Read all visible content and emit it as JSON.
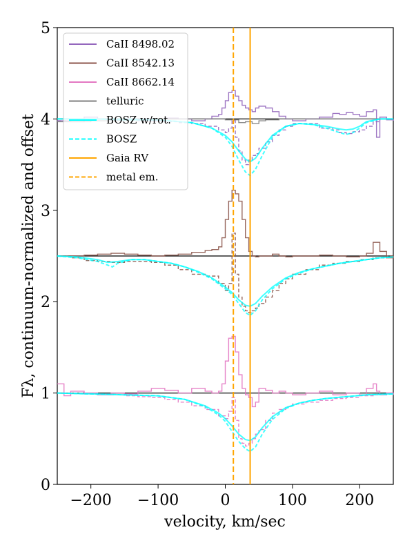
{
  "chart_data": {
    "type": "line",
    "xlabel": "velocity, km/sec",
    "ylabel": "Fλ, continuum-normalized and offset",
    "xlim": [
      -250,
      250
    ],
    "ylim": [
      0,
      5
    ],
    "xticks": [
      -200,
      -100,
      0,
      100,
      200
    ],
    "xtick_labels": [
      "−200",
      "−100",
      "0",
      "100",
      "200"
    ],
    "yticks": [
      0,
      1,
      2,
      3,
      4,
      5
    ],
    "ytick_labels": [
      "0",
      "1",
      "2",
      "3",
      "4",
      "5"
    ],
    "legend_position": "upper-left",
    "legend": [
      {
        "label": "CaII 8498.02",
        "color": "#9467bd",
        "style": "solid"
      },
      {
        "label": "CaII 8542.13",
        "color": "#8c564b",
        "style": "solid"
      },
      {
        "label": "CaII 8662.14",
        "color": "#e377c2",
        "style": "solid"
      },
      {
        "label": "telluric",
        "color": "#7f7f7f",
        "style": "solid"
      },
      {
        "label": "BOSZ w/rot.",
        "color": "#00ffff",
        "style": "solid"
      },
      {
        "label": "BOSZ",
        "color": "#00ffff",
        "style": "dashed"
      },
      {
        "label": "Gaia RV",
        "color": "#ffa500",
        "style": "solid"
      },
      {
        "label": "metal em.",
        "color": "#ffa500",
        "style": "dashed"
      }
    ],
    "vlines": [
      {
        "name": "Gaia RV",
        "x": 37,
        "color": "#ffa500",
        "style": "solid"
      },
      {
        "name": "metal em.",
        "x": 12,
        "color": "#ffa500",
        "style": "dashed"
      }
    ],
    "offsets": [
      4,
      2.5,
      1
    ],
    "series": [
      {
        "name": "CaII 8498.02",
        "color": "#9467bd",
        "step": true,
        "offset": 4,
        "x": [
          -250,
          -230,
          -210,
          -190,
          -170,
          -150,
          -130,
          -110,
          -90,
          -70,
          -50,
          -30,
          -20,
          -10,
          -5,
          0,
          5,
          10,
          15,
          20,
          25,
          30,
          35,
          40,
          45,
          50,
          60,
          70,
          80,
          90,
          100,
          120,
          140,
          160,
          170,
          180,
          190,
          200,
          210,
          220,
          225,
          230,
          240,
          250
        ],
        "y": [
          3.98,
          3.97,
          4.02,
          4.0,
          3.99,
          4.0,
          4.0,
          3.98,
          4.01,
          4.0,
          3.98,
          4.0,
          4.03,
          4.05,
          4.12,
          4.2,
          4.29,
          4.31,
          4.25,
          4.2,
          4.15,
          4.12,
          4.1,
          4.08,
          4.12,
          4.14,
          4.12,
          4.08,
          4.03,
          4.0,
          3.98,
          4.0,
          4.02,
          4.06,
          4.05,
          4.07,
          4.05,
          4.03,
          4.08,
          4.1,
          3.8,
          4.02,
          3.99,
          3.98
        ]
      },
      {
        "name": "CaII 8498.02 dashed",
        "color": "#9467bd",
        "step": true,
        "dashed": true,
        "offset": 4,
        "x": [
          -250,
          -230,
          -210,
          -190,
          -170,
          -150,
          -130,
          -110,
          -90,
          -70,
          -50,
          -30,
          -10,
          0,
          5,
          10,
          15,
          20,
          25,
          30,
          35,
          40,
          45,
          50,
          60,
          70,
          80,
          90,
          100,
          120,
          140,
          160,
          170,
          180,
          190,
          200,
          210,
          220,
          230,
          240,
          250
        ],
        "y": [
          3.98,
          4.0,
          4.0,
          4.0,
          3.99,
          3.99,
          3.98,
          3.98,
          3.97,
          3.96,
          3.95,
          3.92,
          3.88,
          3.85,
          3.9,
          3.98,
          3.8,
          3.65,
          3.55,
          3.5,
          3.55,
          3.6,
          3.62,
          3.68,
          3.75,
          3.82,
          3.88,
          3.92,
          3.95,
          3.95,
          3.9,
          3.88,
          3.85,
          3.84,
          3.86,
          3.88,
          3.92,
          3.97,
          4.0,
          4.0,
          4.0
        ]
      },
      {
        "name": "CaII 8542.13",
        "color": "#8c564b",
        "step": true,
        "offset": 2.5,
        "x": [
          -250,
          -230,
          -210,
          -190,
          -170,
          -150,
          -130,
          -110,
          -90,
          -70,
          -50,
          -30,
          -20,
          -10,
          -5,
          0,
          5,
          10,
          15,
          20,
          25,
          30,
          35,
          40,
          45,
          50,
          60,
          70,
          80,
          90,
          100,
          120,
          140,
          160,
          180,
          200,
          210,
          220,
          230,
          240,
          250
        ],
        "y": [
          2.5,
          2.5,
          2.51,
          2.52,
          2.53,
          2.52,
          2.51,
          2.5,
          2.51,
          2.52,
          2.54,
          2.56,
          2.57,
          2.6,
          2.7,
          2.9,
          3.1,
          3.22,
          3.18,
          3.1,
          2.9,
          2.7,
          2.55,
          2.5,
          2.49,
          2.5,
          2.5,
          2.52,
          2.5,
          2.49,
          2.5,
          2.5,
          2.51,
          2.5,
          2.49,
          2.5,
          2.53,
          2.65,
          2.55,
          2.48,
          2.5
        ]
      },
      {
        "name": "CaII 8542.13 dashed",
        "color": "#8c564b",
        "step": true,
        "dashed": true,
        "offset": 2.5,
        "x": [
          -250,
          -230,
          -210,
          -190,
          -170,
          -150,
          -130,
          -110,
          -90,
          -70,
          -50,
          -30,
          -10,
          0,
          5,
          10,
          15,
          20,
          25,
          30,
          35,
          40,
          45,
          50,
          60,
          70,
          80,
          90,
          100,
          120,
          140,
          160,
          180,
          200,
          220,
          240,
          250
        ],
        "y": [
          2.5,
          2.48,
          2.45,
          2.44,
          2.43,
          2.44,
          2.44,
          2.43,
          2.4,
          2.35,
          2.3,
          2.28,
          2.2,
          2.12,
          2.2,
          2.75,
          2.3,
          2.05,
          1.95,
          1.9,
          1.88,
          1.9,
          1.93,
          1.98,
          2.05,
          2.12,
          2.2,
          2.25,
          2.3,
          2.35,
          2.4,
          2.42,
          2.44,
          2.46,
          2.48,
          2.5,
          2.5
        ]
      },
      {
        "name": "CaII 8662.14",
        "color": "#e377c2",
        "step": true,
        "offset": 1,
        "x": [
          -250,
          -240,
          -230,
          -210,
          -190,
          -170,
          -150,
          -130,
          -110,
          -90,
          -70,
          -50,
          -30,
          -20,
          -10,
          -5,
          0,
          5,
          10,
          15,
          20,
          25,
          30,
          35,
          40,
          45,
          50,
          60,
          70,
          80,
          90,
          100,
          120,
          140,
          160,
          180,
          200,
          210,
          220,
          225,
          230,
          240,
          250
        ],
        "y": [
          1.1,
          0.97,
          1.02,
          1.0,
          0.98,
          1.0,
          0.99,
          1.02,
          1.05,
          1.03,
          1.0,
          1.05,
          1.02,
          1.0,
          1.02,
          1.1,
          1.35,
          1.6,
          1.62,
          1.45,
          1.2,
          1.05,
          0.98,
          0.95,
          0.85,
          0.9,
          1.05,
          1.03,
          1.0,
          1.02,
          1.0,
          0.98,
          1.0,
          1.02,
          0.98,
          1.0,
          0.98,
          1.05,
          1.1,
          1.02,
          0.98,
          1.0,
          0.98
        ]
      },
      {
        "name": "CaII 8662.14 dashed",
        "color": "#e377c2",
        "step": true,
        "dashed": true,
        "offset": 1,
        "x": [
          -250,
          -230,
          -210,
          -190,
          -170,
          -150,
          -130,
          -110,
          -90,
          -70,
          -50,
          -30,
          -10,
          0,
          5,
          10,
          15,
          20,
          25,
          30,
          35,
          40,
          45,
          50,
          60,
          70,
          80,
          90,
          100,
          120,
          140,
          160,
          180,
          200,
          220,
          240,
          250
        ],
        "y": [
          1.0,
          1.0,
          0.99,
          0.99,
          0.98,
          0.97,
          0.96,
          0.95,
          0.93,
          0.9,
          0.86,
          0.82,
          0.75,
          0.72,
          0.8,
          0.95,
          0.7,
          0.5,
          0.45,
          0.42,
          0.45,
          0.5,
          0.55,
          0.6,
          0.7,
          0.78,
          0.82,
          0.85,
          0.88,
          0.9,
          0.92,
          0.94,
          0.95,
          0.97,
          0.98,
          1.0,
          1.0
        ]
      },
      {
        "name": "telluric",
        "color": "#7f7f7f",
        "step": true,
        "offset": 4,
        "x": [
          -250,
          -200,
          -150,
          -100,
          -50,
          0,
          20,
          30,
          40,
          50,
          60,
          80,
          100,
          150,
          200,
          250
        ],
        "y": [
          3.97,
          3.98,
          3.99,
          4.0,
          4.0,
          3.99,
          3.96,
          3.97,
          3.95,
          3.98,
          3.99,
          4.0,
          4.0,
          4.0,
          4.0,
          4.0
        ]
      },
      {
        "name": "BOSZ w/rot.",
        "color": "#00ffff",
        "offset": 4,
        "x": [
          -250,
          -200,
          -150,
          -100,
          -50,
          -20,
          0,
          10,
          20,
          30,
          37,
          45,
          55,
          70,
          90,
          110,
          130,
          150,
          170,
          180,
          190,
          200,
          210,
          230,
          250
        ],
        "y": [
          4.0,
          4.0,
          3.99,
          3.99,
          3.96,
          3.9,
          3.82,
          3.75,
          3.65,
          3.56,
          3.53,
          3.57,
          3.68,
          3.82,
          3.92,
          3.95,
          3.94,
          3.92,
          3.89,
          3.88,
          3.89,
          3.92,
          3.97,
          4.0,
          4.0
        ]
      },
      {
        "name": "BOSZ",
        "color": "#00ffff",
        "dashed": true,
        "offset": 4,
        "x": [
          -250,
          -200,
          -150,
          -100,
          -50,
          -20,
          0,
          10,
          20,
          30,
          37,
          45,
          55,
          70,
          90,
          110,
          130,
          150,
          170,
          180,
          190,
          200,
          210,
          230,
          250
        ],
        "y": [
          4.0,
          4.0,
          4.0,
          3.99,
          3.96,
          3.9,
          3.8,
          3.7,
          3.55,
          3.42,
          3.38,
          3.45,
          3.6,
          3.8,
          3.92,
          3.95,
          3.94,
          3.9,
          3.85,
          3.83,
          3.85,
          3.9,
          3.96,
          4.0,
          4.0
        ]
      },
      {
        "name": "BOSZ w/rot. 8542",
        "color": "#00ffff",
        "offset": 2.5,
        "x": [
          -250,
          -220,
          -190,
          -175,
          -160,
          -140,
          -120,
          -100,
          -80,
          -60,
          -40,
          -20,
          0,
          10,
          20,
          30,
          37,
          45,
          55,
          70,
          90,
          110,
          130,
          150,
          170,
          200,
          230,
          250
        ],
        "y": [
          2.5,
          2.49,
          2.46,
          2.43,
          2.44,
          2.46,
          2.46,
          2.44,
          2.42,
          2.38,
          2.33,
          2.26,
          2.16,
          2.1,
          2.02,
          1.96,
          1.95,
          1.98,
          2.06,
          2.16,
          2.26,
          2.32,
          2.36,
          2.39,
          2.42,
          2.45,
          2.48,
          2.49
        ]
      },
      {
        "name": "BOSZ 8542",
        "color": "#00ffff",
        "dashed": true,
        "offset": 2.5,
        "x": [
          -250,
          -220,
          -190,
          -175,
          -168,
          -160,
          -140,
          -120,
          -100,
          -80,
          -60,
          -40,
          -20,
          0,
          10,
          20,
          30,
          37,
          45,
          55,
          70,
          90,
          110,
          130,
          150,
          170,
          200,
          230,
          250
        ],
        "y": [
          2.5,
          2.48,
          2.44,
          2.4,
          2.38,
          2.42,
          2.46,
          2.46,
          2.44,
          2.42,
          2.38,
          2.32,
          2.25,
          2.14,
          2.08,
          1.98,
          1.88,
          1.85,
          1.9,
          2.02,
          2.14,
          2.25,
          2.31,
          2.36,
          2.39,
          2.42,
          2.45,
          2.48,
          2.49
        ]
      },
      {
        "name": "BOSZ w/rot. 8662",
        "color": "#00ffff",
        "offset": 1,
        "x": [
          -250,
          -200,
          -150,
          -100,
          -60,
          -30,
          -10,
          0,
          10,
          20,
          30,
          37,
          45,
          55,
          70,
          90,
          110,
          130,
          150,
          180,
          210,
          250
        ],
        "y": [
          1.0,
          0.99,
          0.98,
          0.97,
          0.93,
          0.86,
          0.78,
          0.72,
          0.64,
          0.55,
          0.49,
          0.48,
          0.52,
          0.62,
          0.74,
          0.84,
          0.89,
          0.92,
          0.94,
          0.96,
          0.98,
          0.99
        ]
      },
      {
        "name": "BOSZ 8662",
        "color": "#00ffff",
        "dashed": true,
        "offset": 1,
        "x": [
          -250,
          -200,
          -150,
          -100,
          -60,
          -30,
          -10,
          0,
          10,
          20,
          30,
          37,
          45,
          55,
          70,
          90,
          110,
          130,
          150,
          180,
          210,
          250
        ],
        "y": [
          1.0,
          0.99,
          0.98,
          0.97,
          0.93,
          0.85,
          0.76,
          0.69,
          0.58,
          0.47,
          0.39,
          0.36,
          0.41,
          0.55,
          0.71,
          0.83,
          0.89,
          0.92,
          0.94,
          0.96,
          0.98,
          0.99
        ]
      }
    ]
  }
}
